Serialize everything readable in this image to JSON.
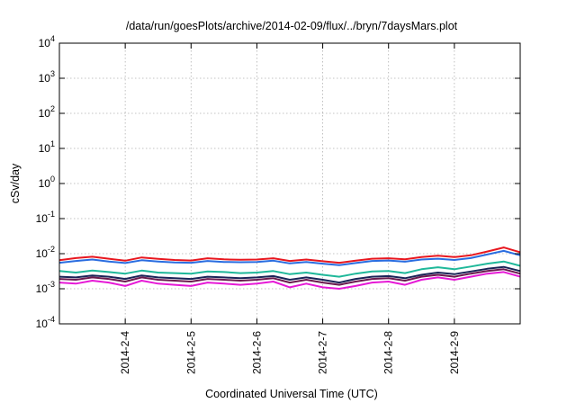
{
  "chart_data": {
    "type": "line",
    "title": "/data/run/goesPlots/archive/2014-02-09/flux/../bryn/7daysMars.plot",
    "xlabel": "Coordinated Universal Time (UTC)",
    "ylabel": "cSv/day",
    "yscale": "log",
    "ylim": [
      0.0001,
      10000
    ],
    "y_ticks": [
      {
        "base": "10",
        "exp": "-4"
      },
      {
        "base": "10",
        "exp": "-3"
      },
      {
        "base": "10",
        "exp": "-2"
      },
      {
        "base": "10",
        "exp": "-1"
      },
      {
        "base": "10",
        "exp": "0"
      },
      {
        "base": "10",
        "exp": "1"
      },
      {
        "base": "10",
        "exp": "2"
      },
      {
        "base": "10",
        "exp": "3"
      },
      {
        "base": "10",
        "exp": "4"
      }
    ],
    "xlim": [
      "2014-02-03 00:00",
      "2014-02-10 00:00"
    ],
    "x_ticks": [
      "2014-2-4",
      "2014-2-5",
      "2014-2-6",
      "2014-2-7",
      "2014-2-8",
      "2014-2-9"
    ],
    "grid": true,
    "legend": "none",
    "x": [
      "2014-02-03 00:00",
      "2014-02-03 06:00",
      "2014-02-03 12:00",
      "2014-02-03 18:00",
      "2014-02-04 00:00",
      "2014-02-04 06:00",
      "2014-02-04 12:00",
      "2014-02-04 18:00",
      "2014-02-05 00:00",
      "2014-02-05 06:00",
      "2014-02-05 12:00",
      "2014-02-05 18:00",
      "2014-02-06 00:00",
      "2014-02-06 06:00",
      "2014-02-06 12:00",
      "2014-02-06 18:00",
      "2014-02-07 00:00",
      "2014-02-07 06:00",
      "2014-02-07 12:00",
      "2014-02-07 18:00",
      "2014-02-08 00:00",
      "2014-02-08 06:00",
      "2014-02-08 12:00",
      "2014-02-08 18:00",
      "2014-02-09 00:00",
      "2014-02-09 06:00",
      "2014-02-09 12:00",
      "2014-02-09 18:00",
      "2014-02-10 00:00"
    ],
    "series": [
      {
        "color": "#e8171f",
        "values": [
          0.0065,
          0.0075,
          0.0082,
          0.0072,
          0.0063,
          0.0078,
          0.0071,
          0.0066,
          0.0064,
          0.0074,
          0.0069,
          0.0067,
          0.0068,
          0.0074,
          0.0062,
          0.0068,
          0.0061,
          0.0055,
          0.0063,
          0.0072,
          0.0074,
          0.0069,
          0.008,
          0.0088,
          0.008,
          0.009,
          0.0115,
          0.015,
          0.011
        ]
      },
      {
        "color": "#2a6de0",
        "values": [
          0.0055,
          0.0062,
          0.0068,
          0.006,
          0.0054,
          0.0065,
          0.006,
          0.0056,
          0.0055,
          0.0062,
          0.0058,
          0.0057,
          0.0058,
          0.0063,
          0.0053,
          0.0058,
          0.0052,
          0.0047,
          0.0054,
          0.0062,
          0.0064,
          0.0059,
          0.0068,
          0.0072,
          0.0066,
          0.0075,
          0.0095,
          0.012,
          0.009
        ]
      },
      {
        "color": "#1fb89a",
        "values": [
          0.0032,
          0.0029,
          0.0033,
          0.003,
          0.0027,
          0.0033,
          0.0029,
          0.0028,
          0.0027,
          0.0031,
          0.003,
          0.0028,
          0.0029,
          0.0032,
          0.0026,
          0.0029,
          0.0025,
          0.0022,
          0.0027,
          0.0031,
          0.0032,
          0.0028,
          0.0036,
          0.0041,
          0.0036,
          0.0043,
          0.0052,
          0.006,
          0.0045
        ]
      },
      {
        "color": "#1a2357",
        "values": [
          0.0022,
          0.0021,
          0.0024,
          0.0022,
          0.0019,
          0.0024,
          0.0021,
          0.002,
          0.0019,
          0.0022,
          0.0021,
          0.002,
          0.0021,
          0.0023,
          0.0018,
          0.0021,
          0.0018,
          0.0015,
          0.0019,
          0.0022,
          0.0023,
          0.002,
          0.0025,
          0.0029,
          0.0026,
          0.0031,
          0.0037,
          0.0042,
          0.0032
        ]
      },
      {
        "color": "#6a1a4e",
        "values": [
          0.0019,
          0.0018,
          0.0021,
          0.0019,
          0.0016,
          0.0021,
          0.0018,
          0.0017,
          0.0016,
          0.0019,
          0.0018,
          0.0017,
          0.0018,
          0.002,
          0.0015,
          0.0018,
          0.0015,
          0.0013,
          0.0016,
          0.0019,
          0.002,
          0.0017,
          0.0022,
          0.0025,
          0.0022,
          0.0027,
          0.0032,
          0.0036,
          0.0027
        ]
      },
      {
        "color": "#e619d6",
        "values": [
          0.0015,
          0.0014,
          0.0017,
          0.0015,
          0.0012,
          0.0017,
          0.0014,
          0.0013,
          0.0012,
          0.0015,
          0.0014,
          0.0013,
          0.0014,
          0.0016,
          0.0011,
          0.0014,
          0.0011,
          0.001,
          0.0012,
          0.0015,
          0.0016,
          0.0013,
          0.0018,
          0.0021,
          0.0018,
          0.0022,
          0.0027,
          0.003,
          0.0022
        ]
      }
    ]
  }
}
